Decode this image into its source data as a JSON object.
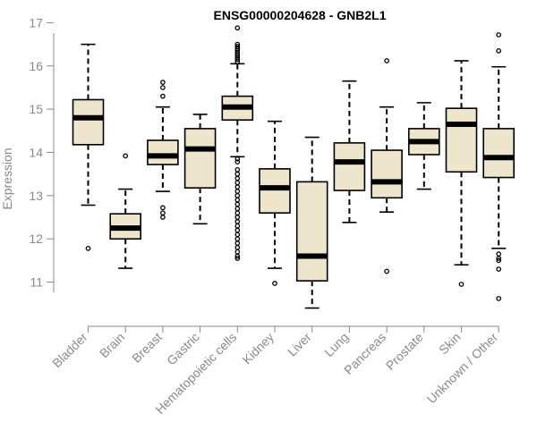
{
  "chart_data": {
    "type": "box",
    "title": "ENSG00000204628 - GNB2L1",
    "ylabel": "Expression",
    "xlabel": "",
    "ylim": [
      10.35,
      17.05
    ],
    "yticks": [
      11,
      12,
      13,
      14,
      15,
      16,
      17
    ],
    "box_color": "#ede6cd",
    "median_color": "#000000",
    "categories": [
      "Bladder",
      "Brain",
      "Breast",
      "Gastric",
      "Hematopoietic cells",
      "Kidney",
      "Liver",
      "Lung",
      "Pancreas",
      "Prostate",
      "Skin",
      "Unknown / Other"
    ],
    "boxes": [
      {
        "whisker_low": 12.78,
        "q1": 14.18,
        "median": 14.8,
        "q3": 15.22,
        "whisker_high": 16.5,
        "outliers": [
          11.78
        ]
      },
      {
        "whisker_low": 11.32,
        "q1": 12.0,
        "median": 12.25,
        "q3": 12.58,
        "whisker_high": 13.15,
        "outliers": [
          13.92
        ]
      },
      {
        "whisker_low": 13.1,
        "q1": 13.72,
        "median": 13.92,
        "q3": 14.28,
        "whisker_high": 15.05,
        "outliers": [
          15.62,
          15.5,
          15.3,
          12.72,
          12.6,
          12.5
        ]
      },
      {
        "whisker_low": 12.35,
        "q1": 13.18,
        "median": 14.08,
        "q3": 14.55,
        "whisker_high": 14.88,
        "outliers": []
      },
      {
        "whisker_low": 13.9,
        "q1": 14.75,
        "median": 15.05,
        "q3": 15.3,
        "whisker_high": 16.05,
        "outliers": [
          16.88,
          16.5,
          16.45,
          16.4,
          16.35,
          16.3,
          16.25,
          16.2,
          16.15,
          16.1,
          13.85,
          13.78,
          13.6,
          13.5,
          13.4,
          13.3,
          13.2,
          13.1,
          13.0,
          12.9,
          12.8,
          12.7,
          12.6,
          12.5,
          12.4,
          12.3,
          12.2,
          12.1,
          12.0,
          11.9,
          11.8,
          11.7,
          11.6,
          11.55
        ]
      },
      {
        "whisker_low": 11.32,
        "q1": 12.6,
        "median": 13.18,
        "q3": 13.62,
        "whisker_high": 14.72,
        "outliers": [
          10.97
        ]
      },
      {
        "whisker_low": 10.4,
        "q1": 11.03,
        "median": 11.6,
        "q3": 13.32,
        "whisker_high": 14.35,
        "outliers": []
      },
      {
        "whisker_low": 12.38,
        "q1": 13.12,
        "median": 13.78,
        "q3": 14.22,
        "whisker_high": 15.65,
        "outliers": []
      },
      {
        "whisker_low": 12.62,
        "q1": 12.95,
        "median": 13.32,
        "q3": 14.05,
        "whisker_high": 15.05,
        "outliers": [
          16.12,
          11.25
        ]
      },
      {
        "whisker_low": 13.15,
        "q1": 13.95,
        "median": 14.25,
        "q3": 14.55,
        "whisker_high": 15.15,
        "outliers": []
      },
      {
        "whisker_low": 11.4,
        "q1": 13.55,
        "median": 14.65,
        "q3": 15.02,
        "whisker_high": 16.12,
        "outliers": [
          10.95
        ]
      },
      {
        "whisker_low": 11.78,
        "q1": 13.42,
        "median": 13.88,
        "q3": 14.55,
        "whisker_high": 15.98,
        "outliers": [
          16.72,
          16.35,
          11.65,
          11.55,
          11.5,
          11.3,
          10.62
        ]
      }
    ]
  }
}
